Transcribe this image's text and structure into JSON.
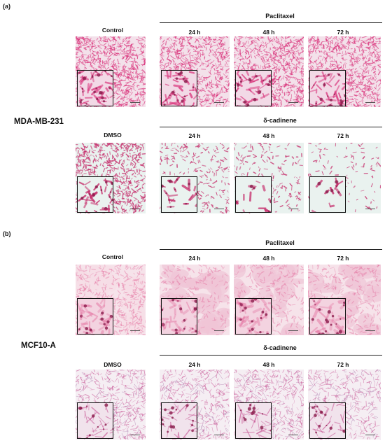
{
  "panels": [
    {
      "label": "(a)",
      "cell_line": "MDA-MB-231",
      "rows": [
        {
          "control_label": "Control",
          "treatment_label": "Paclitaxel",
          "time_labels": [
            "24 h",
            "48 h",
            "72 h"
          ],
          "style": "dense-pink",
          "colors": {
            "bg": "#f3e1ea",
            "cell": "#d9317a",
            "inset_bg": "#f2d9e6"
          }
        },
        {
          "control_label": "DMSO",
          "treatment_label": "δ-cadinene",
          "time_labels": [
            "24 h",
            "48 h",
            "72 h"
          ],
          "style": "sparse-teal",
          "colors": {
            "bg": "#e9f2ef",
            "cell": "#c62e6c",
            "inset_bg": "#eaf2ef"
          }
        }
      ]
    },
    {
      "label": "(b)",
      "cell_line": "MCF10-A",
      "rows": [
        {
          "control_label": "Control",
          "treatment_label": "Paclitaxel",
          "time_labels": [
            "24 h",
            "48 h",
            "72 h"
          ],
          "style": "tissue-pink",
          "colors": {
            "bg": "#f6e3ea",
            "cell": "#e26497",
            "inset_bg": "#f3d3e0"
          }
        },
        {
          "control_label": "DMSO",
          "treatment_label": "δ-cadinene",
          "time_labels": [
            "24 h",
            "48 h",
            "72 h"
          ],
          "style": "mesh-purple",
          "colors": {
            "bg": "#f5eef3",
            "cell": "#c44a8e",
            "inset_bg": "#f1e3ec"
          }
        }
      ]
    }
  ]
}
